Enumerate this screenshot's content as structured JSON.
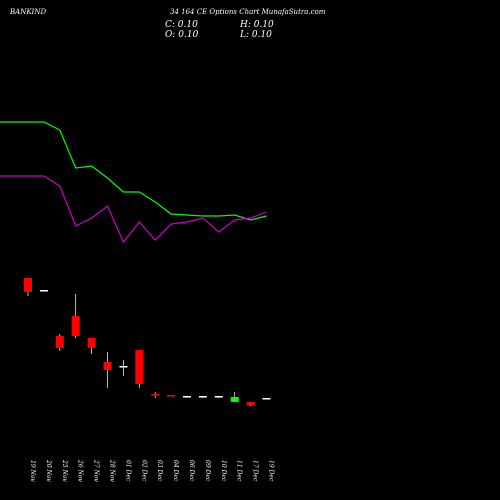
{
  "header": {
    "symbol": "BANKIND",
    "title": "34 164 CE Options Chart MunafaSutra.com",
    "open": "C: 0.10",
    "high": "H: 0.10",
    "close": "O: 0.10",
    "low": "L: 0.10"
  },
  "colors": {
    "background": "#000000",
    "up": "#00ff00",
    "down": "#ff0000",
    "neutral": "#ffffff",
    "ma_short": "#00ff00",
    "ma_long": "#cc00cc",
    "text": "#ffffff"
  },
  "chart_data": {
    "type": "candlestick",
    "x": [
      "19 Nov",
      "20 Nov",
      "25 Nov",
      "26 Nov",
      "27 Nov",
      "28 Nov",
      "01 Dec",
      "02 Dec",
      "03 Dec",
      "04 Dec",
      "06 Dec",
      "09 Dec",
      "10 Dec",
      "11 Dec",
      "17 Dec",
      "19 Dec"
    ],
    "series": [
      {
        "open": [
          8.6,
          8.0,
          5.7,
          6.7,
          5.6,
          4.4,
          4.2,
          5.0,
          2.8,
          2.75,
          2.7,
          2.7,
          2.7,
          2.4,
          2.4,
          2.6
        ],
        "high": [
          8.6,
          8.0,
          5.8,
          7.8,
          5.6,
          4.9,
          4.5,
          5.0,
          2.9,
          2.75,
          2.7,
          2.7,
          2.7,
          2.9,
          2.4,
          2.6
        ],
        "low": [
          7.7,
          7.95,
          4.95,
          5.6,
          4.8,
          3.1,
          3.7,
          3.1,
          2.6,
          2.7,
          2.6,
          2.6,
          2.6,
          2.4,
          2.2,
          2.6
        ],
        "close": [
          7.9,
          8.0,
          5.1,
          5.7,
          5.1,
          4.0,
          4.2,
          3.3,
          2.75,
          2.7,
          2.7,
          2.7,
          2.7,
          2.65,
          2.25,
          2.6
        ]
      },
      {
        "name": "",
        "values": [
          16.4,
          16.4,
          16.0,
          14.1,
          14.2,
          13.6,
          12.9,
          12.9,
          12.4,
          11.8,
          11.75,
          11.7,
          11.7,
          11.75,
          11.5,
          11.7
        ]
      },
      {
        "name": "",
        "values": [
          13.7,
          13.7,
          13.2,
          11.2,
          11.6,
          12.2,
          10.4,
          11.4,
          10.5,
          11.3,
          11.4,
          11.6,
          10.9,
          11.5,
          11.6,
          11.9
        ]
      }
    ],
    "ylim": [
      0,
      20
    ]
  }
}
